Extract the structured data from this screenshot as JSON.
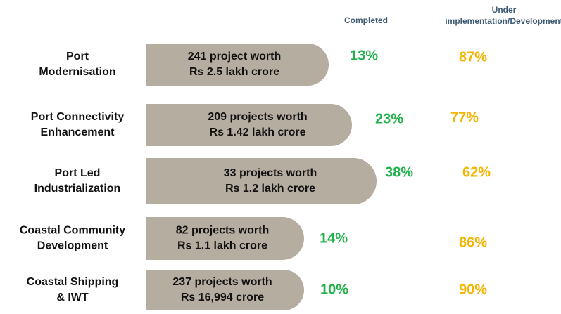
{
  "header": {
    "completed": "Completed",
    "under": [
      "Under",
      "implementation/Development"
    ]
  },
  "rows": [
    {
      "label": [
        "Port",
        "Modernisation"
      ],
      "detail": [
        "241 project worth",
        "Rs 2.5 lakh crore"
      ],
      "completed": "13%",
      "under": "87%"
    },
    {
      "label": [
        "Port Connectivity",
        "Enhancement"
      ],
      "detail": [
        "209 projects worth",
        "Rs 1.42 lakh crore"
      ],
      "completed": "23%",
      "under": "77%"
    },
    {
      "label": [
        "Port Led",
        "Industrialization"
      ],
      "detail": [
        "33 projects worth",
        "Rs 1.2 lakh crore"
      ],
      "completed": "38%",
      "under": "62%"
    },
    {
      "label": [
        "Coastal Community",
        "Development"
      ],
      "detail": [
        "82 projects worth",
        "Rs 1.1 lakh crore"
      ],
      "completed": "14%",
      "under": "86%"
    },
    {
      "label": [
        "Coastal Shipping",
        "& IWT"
      ],
      "detail": [
        "237 projects worth",
        "Rs 16,994 crore"
      ],
      "completed": "10%",
      "under": "90%"
    }
  ]
}
